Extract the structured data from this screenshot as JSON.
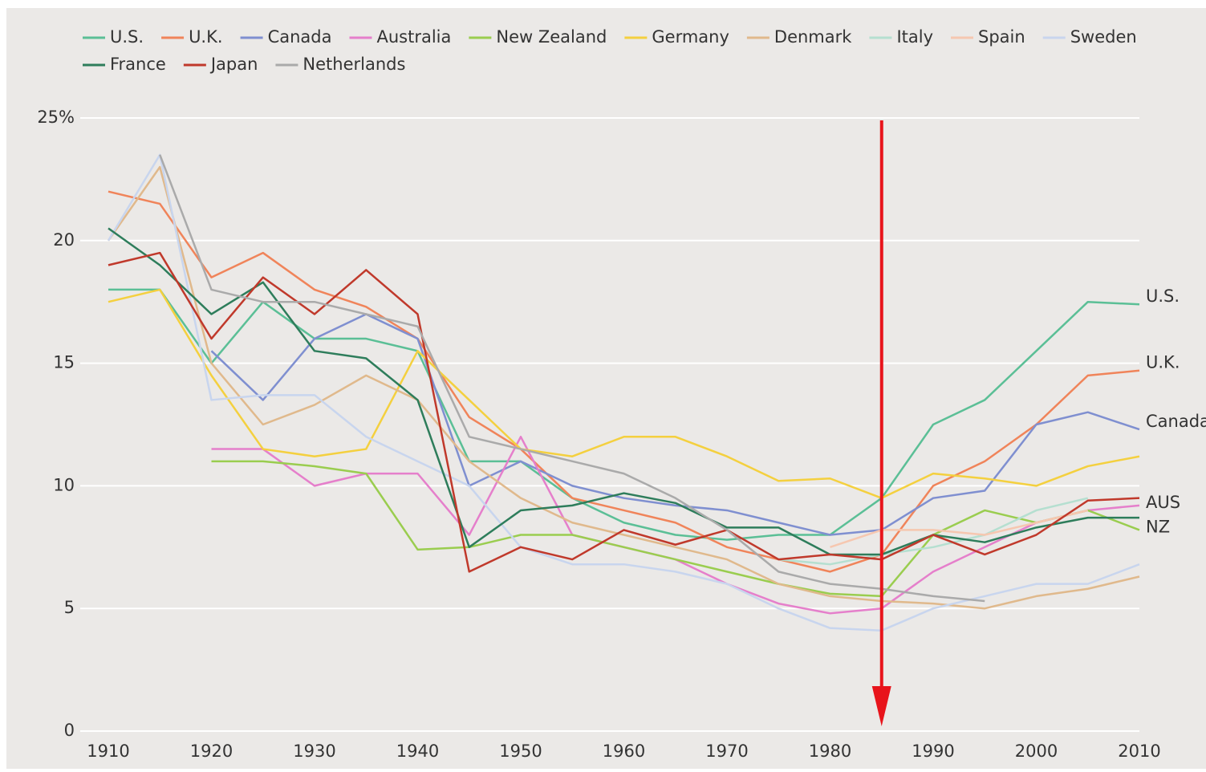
{
  "chart_data": {
    "type": "line",
    "x": [
      1910,
      1915,
      1920,
      1925,
      1930,
      1935,
      1940,
      1945,
      1950,
      1955,
      1960,
      1965,
      1970,
      1975,
      1980,
      1985,
      1990,
      1995,
      2000,
      2005,
      2010
    ],
    "series": [
      {
        "name": "U.S.",
        "color": "#5bbf96",
        "values": [
          18,
          18,
          15,
          17.5,
          16,
          16,
          15.5,
          11,
          11,
          9.5,
          8.5,
          8,
          7.8,
          8,
          8,
          9.5,
          12.5,
          13.5,
          15.5,
          17.5,
          17.4
        ]
      },
      {
        "name": "U.K.",
        "color": "#f0845a",
        "values": [
          22,
          21.5,
          18.5,
          19.5,
          18,
          17.3,
          16,
          12.8,
          11.5,
          9.5,
          9,
          8.5,
          7.5,
          7,
          6.5,
          7.2,
          10,
          11,
          12.5,
          14.5,
          14.7
        ]
      },
      {
        "name": "Canada",
        "color": "#7f8fd0",
        "values": [
          null,
          null,
          15.5,
          13.5,
          16,
          17,
          16,
          10,
          11,
          10,
          9.5,
          9.2,
          9,
          8.5,
          8,
          8.2,
          9.5,
          9.8,
          12.5,
          13,
          12.3
        ]
      },
      {
        "name": "Australia",
        "color": "#e57fcb",
        "values": [
          null,
          null,
          11.5,
          11.5,
          10,
          10.5,
          10.5,
          8,
          12,
          8,
          7.5,
          7,
          6,
          5.2,
          4.8,
          5,
          6.5,
          7.5,
          8.5,
          9,
          9.2
        ]
      },
      {
        "name": "New Zealand",
        "color": "#9acd4f",
        "values": [
          null,
          null,
          11,
          11,
          10.8,
          10.5,
          7.4,
          7.5,
          8,
          8,
          7.5,
          7,
          6.5,
          6,
          5.6,
          5.5,
          8,
          9,
          8.5,
          9,
          8.2
        ]
      },
      {
        "name": "Germany",
        "color": "#f4d03f",
        "values": [
          17.5,
          18,
          14.5,
          11.5,
          11.2,
          11.5,
          15.5,
          13.5,
          11.5,
          11.2,
          12,
          12,
          11.2,
          10.2,
          10.3,
          9.5,
          10.5,
          10.3,
          10,
          10.8,
          11.2
        ]
      },
      {
        "name": "Denmark",
        "color": "#e0b98c",
        "values": [
          20,
          23,
          15,
          12.5,
          13.3,
          14.5,
          13.5,
          11,
          9.5,
          8.5,
          8,
          7.5,
          7,
          6,
          5.5,
          5.3,
          5.2,
          5,
          5.5,
          5.8,
          6.3
        ]
      },
      {
        "name": "Italy",
        "color": "#b5dfd0",
        "values": [
          null,
          null,
          null,
          null,
          null,
          null,
          null,
          null,
          null,
          null,
          null,
          null,
          null,
          7,
          6.8,
          7.2,
          7.5,
          8,
          9,
          9.5,
          null
        ]
      },
      {
        "name": "Spain",
        "color": "#f6c7b0",
        "values": [
          null,
          null,
          null,
          null,
          null,
          null,
          null,
          null,
          null,
          null,
          null,
          null,
          null,
          null,
          7.5,
          8.2,
          8.2,
          8,
          8.5,
          9,
          null
        ]
      },
      {
        "name": "Sweden",
        "color": "#c8d5ee",
        "values": [
          20,
          23.5,
          13.5,
          13.7,
          13.7,
          12,
          11,
          10,
          7.5,
          6.8,
          6.8,
          6.5,
          6,
          5,
          4.2,
          4.1,
          5,
          5.5,
          6,
          6,
          6.8
        ]
      },
      {
        "name": "France",
        "color": "#2e7d5b",
        "values": [
          20.5,
          19,
          17,
          18.3,
          15.5,
          15.2,
          13.5,
          7.5,
          9,
          9.2,
          9.7,
          9.3,
          8.3,
          8.3,
          7.2,
          7.2,
          8,
          7.7,
          8.3,
          8.7,
          8.7
        ]
      },
      {
        "name": "Japan",
        "color": "#c0392b",
        "values": [
          19,
          19.5,
          16,
          18.5,
          17,
          18.8,
          17,
          6.5,
          7.5,
          7,
          8.2,
          7.6,
          8.2,
          7,
          7.2,
          7,
          8,
          7.2,
          8,
          9.4,
          9.5
        ]
      },
      {
        "name": "Netherlands",
        "color": "#aaaaaa",
        "values": [
          null,
          23.5,
          18,
          17.5,
          17.5,
          17,
          16.5,
          12,
          11.5,
          11,
          10.5,
          9.5,
          8.2,
          6.5,
          6,
          5.8,
          5.5,
          5.3,
          null,
          null,
          null
        ]
      }
    ],
    "xlim": [
      1910,
      2010
    ],
    "xticks": [
      1910,
      1920,
      1930,
      1940,
      1950,
      1960,
      1970,
      1980,
      1990,
      2000,
      2010
    ],
    "ylim": [
      0,
      25
    ],
    "yticks": [
      0,
      5,
      10,
      15,
      20,
      {
        "value": 25,
        "label": "25%"
      }
    ],
    "grid": true,
    "vline": 1985,
    "annotations": [
      {
        "text": "U.S.",
        "y": 17.7
      },
      {
        "text": "U.K.",
        "y": 15
      },
      {
        "text": "Canada",
        "y": 12.6
      },
      {
        "text": "AUS",
        "y": 9.3
      },
      {
        "text": "NZ",
        "y": 8.3
      }
    ]
  }
}
